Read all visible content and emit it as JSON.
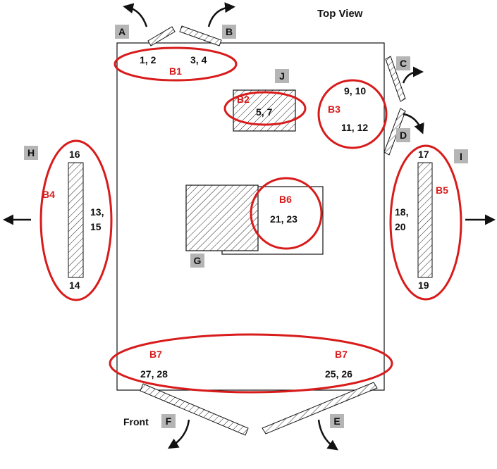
{
  "diagram": {
    "title": "Top View",
    "front_label": "Front",
    "colors": {
      "ellipse": "#d81b1b",
      "box_label_bg": "#b5b5b5",
      "outline": "#111111"
    },
    "boxes": {
      "A": "A",
      "B": "B",
      "C": "C",
      "D": "D",
      "E": "E",
      "F": "F",
      "G": "G",
      "H": "H",
      "I": "I",
      "J": "J"
    },
    "groups": {
      "b1": {
        "name": "B1",
        "nums_left": "1, 2",
        "nums_right": "3, 4"
      },
      "b2": {
        "name": "B2",
        "nums": "5, 7"
      },
      "b3": {
        "name": "B3",
        "nums_top": "9, 10",
        "nums_bottom": "11, 12"
      },
      "b4": {
        "name": "B4",
        "top": "16",
        "mid_1": "13,",
        "mid_2": "15",
        "bottom": "14"
      },
      "b5": {
        "name": "B5",
        "top": "17",
        "mid_1": "18,",
        "mid_2": "20",
        "bottom": "19"
      },
      "b6": {
        "name": "B6",
        "nums": "21, 23"
      },
      "b7_left": {
        "name": "B7",
        "nums": "27, 28"
      },
      "b7_right": {
        "name": "B7",
        "nums": "25, 26"
      }
    },
    "arrows": {
      "a": "curved-arrow-icon",
      "b": "curved-arrow-icon",
      "c": "curved-arrow-icon",
      "d": "curved-arrow-icon",
      "e": "curved-arrow-icon",
      "f": "curved-arrow-icon",
      "h": "left-arrow-icon",
      "i": "right-arrow-icon"
    }
  }
}
